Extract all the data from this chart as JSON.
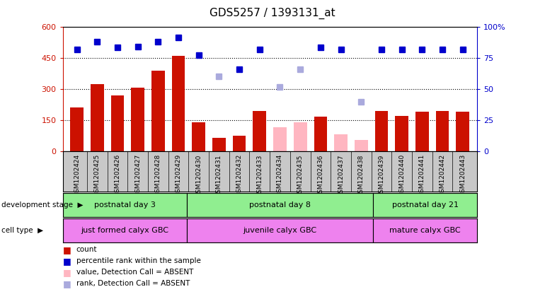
{
  "title": "GDS5257 / 1393131_at",
  "samples": [
    "GSM1202424",
    "GSM1202425",
    "GSM1202426",
    "GSM1202427",
    "GSM1202428",
    "GSM1202429",
    "GSM1202430",
    "GSM1202431",
    "GSM1202432",
    "GSM1202433",
    "GSM1202434",
    "GSM1202435",
    "GSM1202436",
    "GSM1202437",
    "GSM1202438",
    "GSM1202439",
    "GSM1202440",
    "GSM1202441",
    "GSM1202442",
    "GSM1202443"
  ],
  "counts": [
    210,
    325,
    270,
    305,
    390,
    460,
    140,
    65,
    75,
    195,
    null,
    null,
    165,
    null,
    null,
    195,
    170,
    190,
    195,
    190
  ],
  "absent_counts": [
    null,
    null,
    null,
    null,
    null,
    null,
    null,
    null,
    null,
    null,
    115,
    140,
    null,
    80,
    55,
    null,
    null,
    null,
    null,
    null
  ],
  "ranks_left": [
    490,
    530,
    500,
    505,
    530,
    550,
    462,
    null,
    395,
    490,
    null,
    null,
    500,
    490,
    null,
    490,
    490,
    490,
    490,
    490
  ],
  "absent_ranks_left": [
    null,
    null,
    null,
    null,
    null,
    null,
    null,
    360,
    null,
    null,
    310,
    395,
    null,
    null,
    237,
    null,
    null,
    null,
    null,
    null
  ],
  "ylim_left": [
    0,
    600
  ],
  "ylim_right": [
    0,
    100
  ],
  "yticks_left": [
    0,
    150,
    300,
    450,
    600
  ],
  "yticks_right": [
    0,
    25,
    50,
    75,
    100
  ],
  "dev_groups": [
    {
      "label": "postnatal day 3",
      "start": 0,
      "end": 6
    },
    {
      "label": "postnatal day 8",
      "start": 6,
      "end": 15
    },
    {
      "label": "postnatal day 21",
      "start": 15,
      "end": 20
    }
  ],
  "cell_groups": [
    {
      "label": "just formed calyx GBC",
      "start": 0,
      "end": 6
    },
    {
      "label": "juvenile calyx GBC",
      "start": 6,
      "end": 15
    },
    {
      "label": "mature calyx GBC",
      "start": 15,
      "end": 20
    }
  ],
  "dev_color": "#90EE90",
  "cell_color": "#EE82EE",
  "bar_color": "#CC1100",
  "absent_bar_color": "#FFB6C1",
  "rank_color": "#0000CC",
  "absent_rank_color": "#AAAADD",
  "left_axis_color": "#CC1100",
  "right_axis_color": "#0000CC",
  "tick_bg_color": "#C8C8C8",
  "legend_items": [
    {
      "color": "#CC1100",
      "label": "count"
    },
    {
      "color": "#0000CC",
      "label": "percentile rank within the sample"
    },
    {
      "color": "#FFB6C1",
      "label": "value, Detection Call = ABSENT"
    },
    {
      "color": "#AAAADD",
      "label": "rank, Detection Call = ABSENT"
    }
  ]
}
